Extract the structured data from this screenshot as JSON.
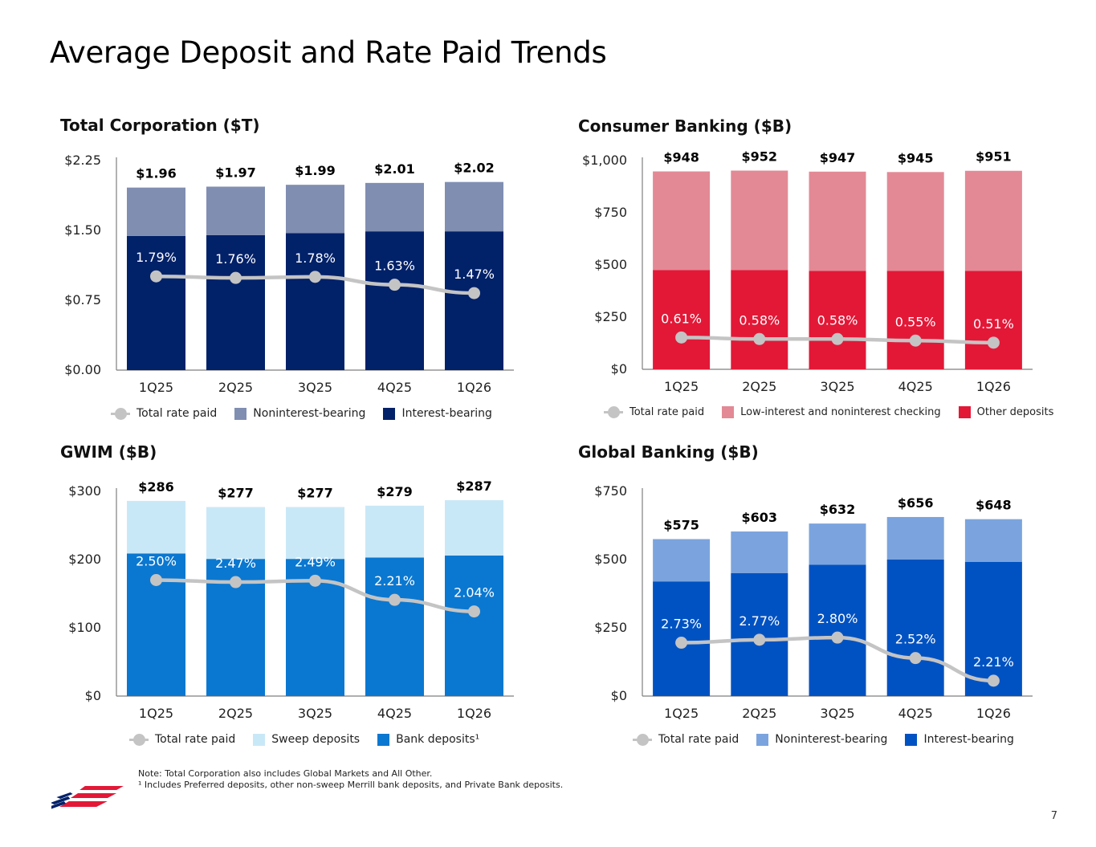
{
  "title": "Average Deposit and Rate Paid Trends",
  "colors": {
    "rate_line": "#c4c4c4",
    "axis": "#7f7f7f"
  },
  "chart_data": [
    {
      "id": "total-corporation",
      "type": "bar",
      "stacked": true,
      "title": "Total Corporation ($T)",
      "categories": [
        "1Q25",
        "2Q25",
        "3Q25",
        "4Q25",
        "1Q26"
      ],
      "ylim": [
        0,
        2.25
      ],
      "yticks": [
        "$0.00",
        "$0.75",
        "$1.50",
        "$2.25"
      ],
      "ytick_values": [
        0,
        0.75,
        1.5,
        2.25
      ],
      "totals": [
        "$1.96",
        "$1.97",
        "$1.99",
        "$2.01",
        "$2.02"
      ],
      "series": [
        {
          "name": "Interest-bearing",
          "color": "#012169",
          "values": [
            1.44,
            1.45,
            1.47,
            1.49,
            1.49
          ]
        },
        {
          "name": "Noninterest-bearing",
          "color": "#808eb2",
          "values": [
            0.52,
            0.52,
            0.52,
            0.52,
            0.53
          ]
        }
      ],
      "rate_series": {
        "name": "Total rate paid",
        "values": [
          1.79,
          1.76,
          1.78,
          1.63,
          1.47
        ],
        "labels": [
          "1.79%",
          "1.76%",
          "1.78%",
          "1.63%",
          "1.47%"
        ],
        "range": [
          0,
          4
        ]
      },
      "legend": [
        "Total rate paid",
        "Noninterest-bearing",
        "Interest-bearing"
      ]
    },
    {
      "id": "consumer-banking",
      "type": "bar",
      "stacked": true,
      "title": "Consumer Banking ($B)",
      "categories": [
        "1Q25",
        "2Q25",
        "3Q25",
        "4Q25",
        "1Q26"
      ],
      "ylim": [
        0,
        1000
      ],
      "yticks": [
        "$0",
        "$250",
        "$500",
        "$750",
        "$1,000"
      ],
      "ytick_values": [
        0,
        250,
        500,
        750,
        1000
      ],
      "totals": [
        "$948",
        "$952",
        "$947",
        "$945",
        "$951"
      ],
      "series": [
        {
          "name": "Other deposits",
          "color": "#e31837",
          "values": [
            476,
            476,
            472,
            472,
            472
          ]
        },
        {
          "name": "Low-interest and noninterest checking",
          "color": "#e38995",
          "values": [
            472,
            476,
            475,
            473,
            479
          ]
        }
      ],
      "rate_series": {
        "name": "Total rate paid",
        "values": [
          0.61,
          0.58,
          0.58,
          0.55,
          0.51
        ],
        "labels": [
          "0.61%",
          "0.58%",
          "0.58%",
          "0.55%",
          "0.51%"
        ],
        "range": [
          0,
          4
        ]
      },
      "legend": [
        "Total rate paid",
        "Low-interest and noninterest checking",
        "Other deposits"
      ]
    },
    {
      "id": "gwim",
      "type": "bar",
      "stacked": true,
      "title": "GWIM ($B)",
      "categories": [
        "1Q25",
        "2Q25",
        "3Q25",
        "4Q25",
        "1Q26"
      ],
      "ylim": [
        0,
        300
      ],
      "yticks": [
        "$0",
        "$100",
        "$200",
        "$300"
      ],
      "ytick_values": [
        0,
        100,
        200,
        300
      ],
      "totals": [
        "$286",
        "$277",
        "$277",
        "$279",
        "$287"
      ],
      "series": [
        {
          "name": "Bank deposits",
          "color": "#0a78d1",
          "values": [
            209,
            201,
            201,
            203,
            206
          ]
        },
        {
          "name": "Sweep deposits",
          "color": "#c9e8f7",
          "values": [
            77,
            76,
            76,
            76,
            81
          ]
        }
      ],
      "rate_series": {
        "name": "Total rate paid",
        "values": [
          2.5,
          2.47,
          2.49,
          2.21,
          2.04
        ],
        "labels": [
          "2.50%",
          "2.47%",
          "2.49%",
          "2.21%",
          "2.04%"
        ],
        "range": [
          0.8,
          3.8
        ]
      },
      "legend": [
        "Total rate paid",
        "Sweep deposits",
        "Bank deposits¹"
      ]
    },
    {
      "id": "global-banking",
      "type": "bar",
      "stacked": true,
      "title": "Global Banking ($B)",
      "categories": [
        "1Q25",
        "2Q25",
        "3Q25",
        "4Q25",
        "1Q26"
      ],
      "ylim": [
        0,
        750
      ],
      "yticks": [
        "$0",
        "$250",
        "$500",
        "$750"
      ],
      "ytick_values": [
        0,
        250,
        500,
        750
      ],
      "totals": [
        "$575",
        "$603",
        "$632",
        "$656",
        "$648"
      ],
      "series": [
        {
          "name": "Interest-bearing",
          "color": "#0052c2",
          "values": [
            420,
            450,
            481,
            500,
            492
          ]
        },
        {
          "name": "Noninterest-bearing",
          "color": "#7ba4de",
          "values": [
            155,
            153,
            151,
            156,
            156
          ]
        }
      ],
      "rate_series": {
        "name": "Total rate paid",
        "values": [
          2.73,
          2.77,
          2.8,
          2.52,
          2.21
        ],
        "labels": [
          "2.73%",
          "2.77%",
          "2.80%",
          "2.52%",
          "2.21%"
        ],
        "range": [
          2.0,
          4.8
        ]
      },
      "legend": [
        "Total rate paid",
        "Noninterest-bearing",
        "Interest-bearing"
      ]
    }
  ],
  "notes": {
    "line1": "Note: Total Corporation also includes Global Markets and All Other.",
    "line2": "¹ Includes Preferred deposits, other non-sweep Merrill bank deposits, and Private Bank deposits."
  },
  "page_number": "7",
  "logo": {
    "name": "bank-flag-logo",
    "stripe_red": "#e31837",
    "stripe_blue": "#012169"
  }
}
